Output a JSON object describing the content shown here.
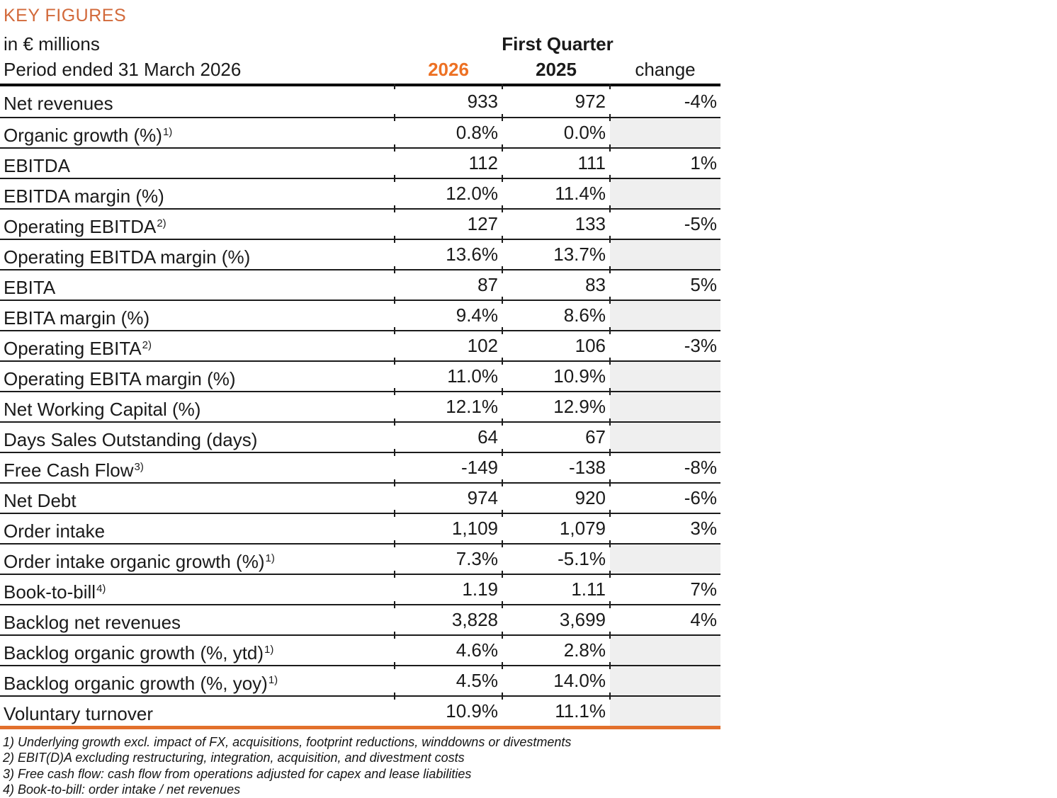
{
  "header": {
    "title": "KEY FIGURES",
    "unit_label": "in € millions",
    "quarter_label": "First Quarter",
    "period_label": "Period ended 31 March 2026",
    "col_2026": "2026",
    "col_2025": "2025",
    "col_change": "change"
  },
  "colors": {
    "title_orange": "#d2693a",
    "col2026_orange": "#ed7124",
    "bottom_rule_orange": "#e2702c",
    "empty_change_cell_gray": "#efefef",
    "text": "#1a1a1a"
  },
  "rows": [
    {
      "label": "Net revenues",
      "sup": "",
      "v2026": "933",
      "v2025": "972",
      "change": "-4%"
    },
    {
      "label": "Organic growth (%)",
      "sup": "1)",
      "v2026": "0.8%",
      "v2025": "0.0%",
      "change": ""
    },
    {
      "label": "EBITDA",
      "sup": "",
      "v2026": "112",
      "v2025": "111",
      "change": "1%"
    },
    {
      "label": "EBITDA margin (%)",
      "sup": "",
      "v2026": "12.0%",
      "v2025": "11.4%",
      "change": ""
    },
    {
      "label": "Operating EBITDA",
      "sup": "2)",
      "v2026": "127",
      "v2025": "133",
      "change": "-5%"
    },
    {
      "label": "Operating EBITDA margin (%)",
      "sup": "",
      "v2026": "13.6%",
      "v2025": "13.7%",
      "change": ""
    },
    {
      "label": "EBITA",
      "sup": "",
      "v2026": "87",
      "v2025": "83",
      "change": "5%"
    },
    {
      "label": "EBITA margin (%)",
      "sup": "",
      "v2026": "9.4%",
      "v2025": "8.6%",
      "change": ""
    },
    {
      "label": "Operating EBITA",
      "sup": "2)",
      "v2026": "102",
      "v2025": "106",
      "change": "-3%"
    },
    {
      "label": "Operating EBITA margin (%)",
      "sup": "",
      "v2026": "11.0%",
      "v2025": "10.9%",
      "change": ""
    },
    {
      "label": "Net Working Capital (%)",
      "sup": "",
      "v2026": "12.1%",
      "v2025": "12.9%",
      "change": ""
    },
    {
      "label": "Days Sales Outstanding (days)",
      "sup": "",
      "v2026": "64",
      "v2025": "67",
      "change": ""
    },
    {
      "label": "Free Cash Flow",
      "sup": "3)",
      "v2026": "-149",
      "v2025": "-138",
      "change": "-8%"
    },
    {
      "label": "Net Debt",
      "sup": "",
      "v2026": "974",
      "v2025": "920",
      "change": "-6%"
    },
    {
      "label": "Order intake",
      "sup": "",
      "v2026": "1,109",
      "v2025": "1,079",
      "change": "3%"
    },
    {
      "label": "Order intake organic growth (%)",
      "sup": "1)",
      "v2026": "7.3%",
      "v2025": "-5.1%",
      "change": ""
    },
    {
      "label": "Book-to-bill",
      "sup": "4)",
      "v2026": "1.19",
      "v2025": "1.11",
      "change": "7%"
    },
    {
      "label": "Backlog net revenues",
      "sup": "",
      "v2026": "3,828",
      "v2025": "3,699",
      "change": "4%"
    },
    {
      "label": "Backlog organic growth (%, ytd)",
      "sup": "1)",
      "v2026": "4.6%",
      "v2025": "2.8%",
      "change": ""
    },
    {
      "label": "Backlog organic growth (%, yoy)",
      "sup": "1)",
      "v2026": "4.5%",
      "v2025": "14.0%",
      "change": ""
    },
    {
      "label": "Voluntary turnover",
      "sup": "",
      "v2026": "10.9%",
      "v2025": "11.1%",
      "change": ""
    }
  ],
  "footnotes": [
    "1) Underlying growth excl. impact of FX, acquisitions, footprint reductions, winddowns or divestments",
    "2) EBIT(D)A excluding restructuring, integration, acquisition, and divestment costs",
    "3) Free cash flow: cash flow from operations adjusted for capex and lease liabilities",
    "4) Book-to-bill: order intake / net revenues"
  ]
}
